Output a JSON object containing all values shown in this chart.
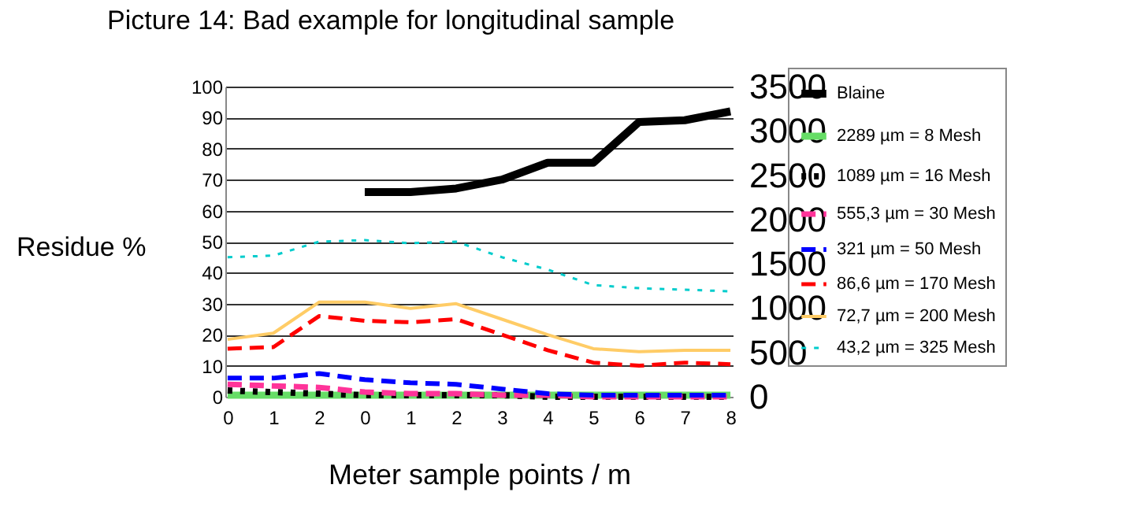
{
  "chart_data": {
    "type": "line",
    "title": "Picture 14: Bad example for longitudinal sample",
    "xlabel": "Meter sample points / m",
    "ylabel": "Residue %",
    "categories": [
      "0",
      "1",
      "2",
      "0",
      "1",
      "2",
      "3",
      "4",
      "5",
      "6",
      "7",
      "8"
    ],
    "series": [
      {
        "name": "Blaine",
        "color": "#000000",
        "axis": "y2",
        "line_style": "solid",
        "values": [
          null,
          null,
          null,
          2310,
          2310,
          2350,
          2450,
          2640,
          2640,
          3100,
          3120,
          3220
        ]
      },
      {
        "name": "2289 µm = 8 Mesh",
        "color": "#66dd66",
        "line_style": "solid",
        "values": [
          0.5,
          0.5,
          0.5,
          0.5,
          0.5,
          0.5,
          0.5,
          0.5,
          0.5,
          0.5,
          0.5,
          0.5
        ]
      },
      {
        "name": "1089 µm = 16 Mesh",
        "color": "#000000",
        "line_style": "dotted",
        "values": [
          2,
          1.5,
          1,
          0.5,
          0.5,
          0.5,
          0.5,
          0,
          0,
          0,
          0,
          0
        ]
      },
      {
        "name": "555,3 µm = 30 Mesh",
        "color": "#ff3399",
        "line_style": "dashed",
        "values": [
          4,
          3.5,
          3,
          1.5,
          1,
          1,
          0.5,
          0.5,
          0,
          0,
          0,
          0
        ]
      },
      {
        "name": "321 µm = 50 Mesh",
        "color": "#0000ff",
        "line_style": "dashed",
        "values": [
          6,
          6,
          7.5,
          5.5,
          4.5,
          4,
          2.5,
          1,
          0.5,
          0.5,
          0.5,
          0.5
        ]
      },
      {
        "name": "86,6 µm = 170 Mesh",
        "color": "#ff0000",
        "line_style": "dashed",
        "values": [
          15.5,
          16,
          26,
          24.5,
          24,
          25,
          20,
          15,
          11,
          10,
          11,
          10.5
        ]
      },
      {
        "name": "72,7 µm = 200 Mesh",
        "color": "#ffcc66",
        "line_style": "solid",
        "values": [
          18.5,
          20.5,
          30.5,
          30.5,
          28.5,
          30,
          25,
          20,
          15.5,
          14.5,
          15,
          15
        ]
      },
      {
        "name": "43,2 µm = 325 Mesh",
        "color": "#00cccc",
        "line_style": "dotted",
        "values": [
          45,
          45.5,
          50,
          50.5,
          49.5,
          50,
          45,
          41,
          36,
          35,
          34.5,
          34
        ]
      }
    ],
    "ylim": [
      0,
      100
    ],
    "yticks": [
      0,
      10,
      20,
      30,
      40,
      50,
      60,
      70,
      80,
      90,
      100
    ],
    "y2lim": [
      0,
      3500
    ],
    "y2ticks": [
      0,
      500,
      1000,
      1500,
      2000,
      2500,
      3000,
      3500
    ],
    "grid": "y",
    "legend": "top right"
  }
}
